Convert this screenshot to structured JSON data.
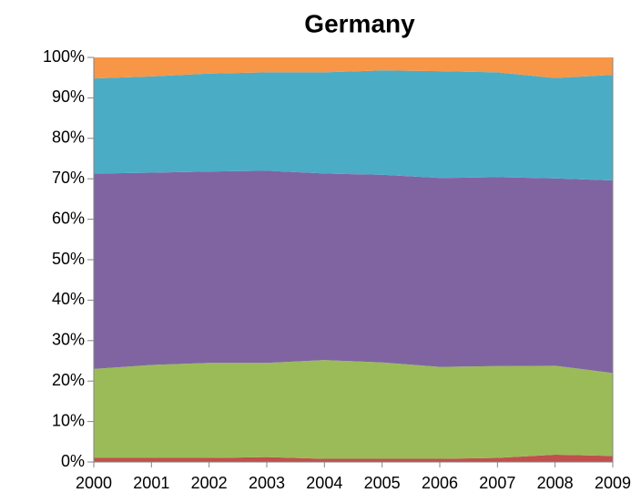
{
  "chart_data": {
    "type": "stacked_area",
    "title": "Germany",
    "categories": [
      "2000",
      "2001",
      "2002",
      "2003",
      "2004",
      "2005",
      "2006",
      "2007",
      "2008",
      "2009"
    ],
    "series": [
      {
        "color": "#c0504d",
        "values": [
          1,
          1,
          1,
          1.2,
          0.8,
          0.8,
          0.8,
          1,
          1.8,
          1.5
        ]
      },
      {
        "color": "#9bbb59",
        "values": [
          22,
          23,
          23.5,
          23.3,
          24.4,
          23.8,
          22.7,
          22.7,
          22,
          20.5
        ]
      },
      {
        "color": "#8064a2",
        "values": [
          48.3,
          47.5,
          47.3,
          47.5,
          46.1,
          46.4,
          46.7,
          46.7,
          46.3,
          47.6
        ]
      },
      {
        "color": "#4bacc6",
        "values": [
          23.5,
          23.8,
          24.2,
          24.3,
          25,
          25.8,
          26.4,
          25.9,
          24.8,
          26.1
        ]
      },
      {
        "color": "#f79646",
        "values": [
          5.2,
          4.7,
          4,
          3.7,
          3.7,
          3.2,
          3.4,
          3.7,
          5.1,
          4.3
        ]
      }
    ],
    "ylim": [
      0,
      100
    ],
    "yticks": [
      {
        "value": 0,
        "label": "0%"
      },
      {
        "value": 10,
        "label": "10%"
      },
      {
        "value": 20,
        "label": "20%"
      },
      {
        "value": 30,
        "label": "30%"
      },
      {
        "value": 40,
        "label": "40%"
      },
      {
        "value": 50,
        "label": "50%"
      },
      {
        "value": 60,
        "label": "60%"
      },
      {
        "value": 70,
        "label": "70%"
      },
      {
        "value": 80,
        "label": "80%"
      },
      {
        "value": 90,
        "label": "90%"
      },
      {
        "value": 100,
        "label": "100%"
      }
    ]
  }
}
